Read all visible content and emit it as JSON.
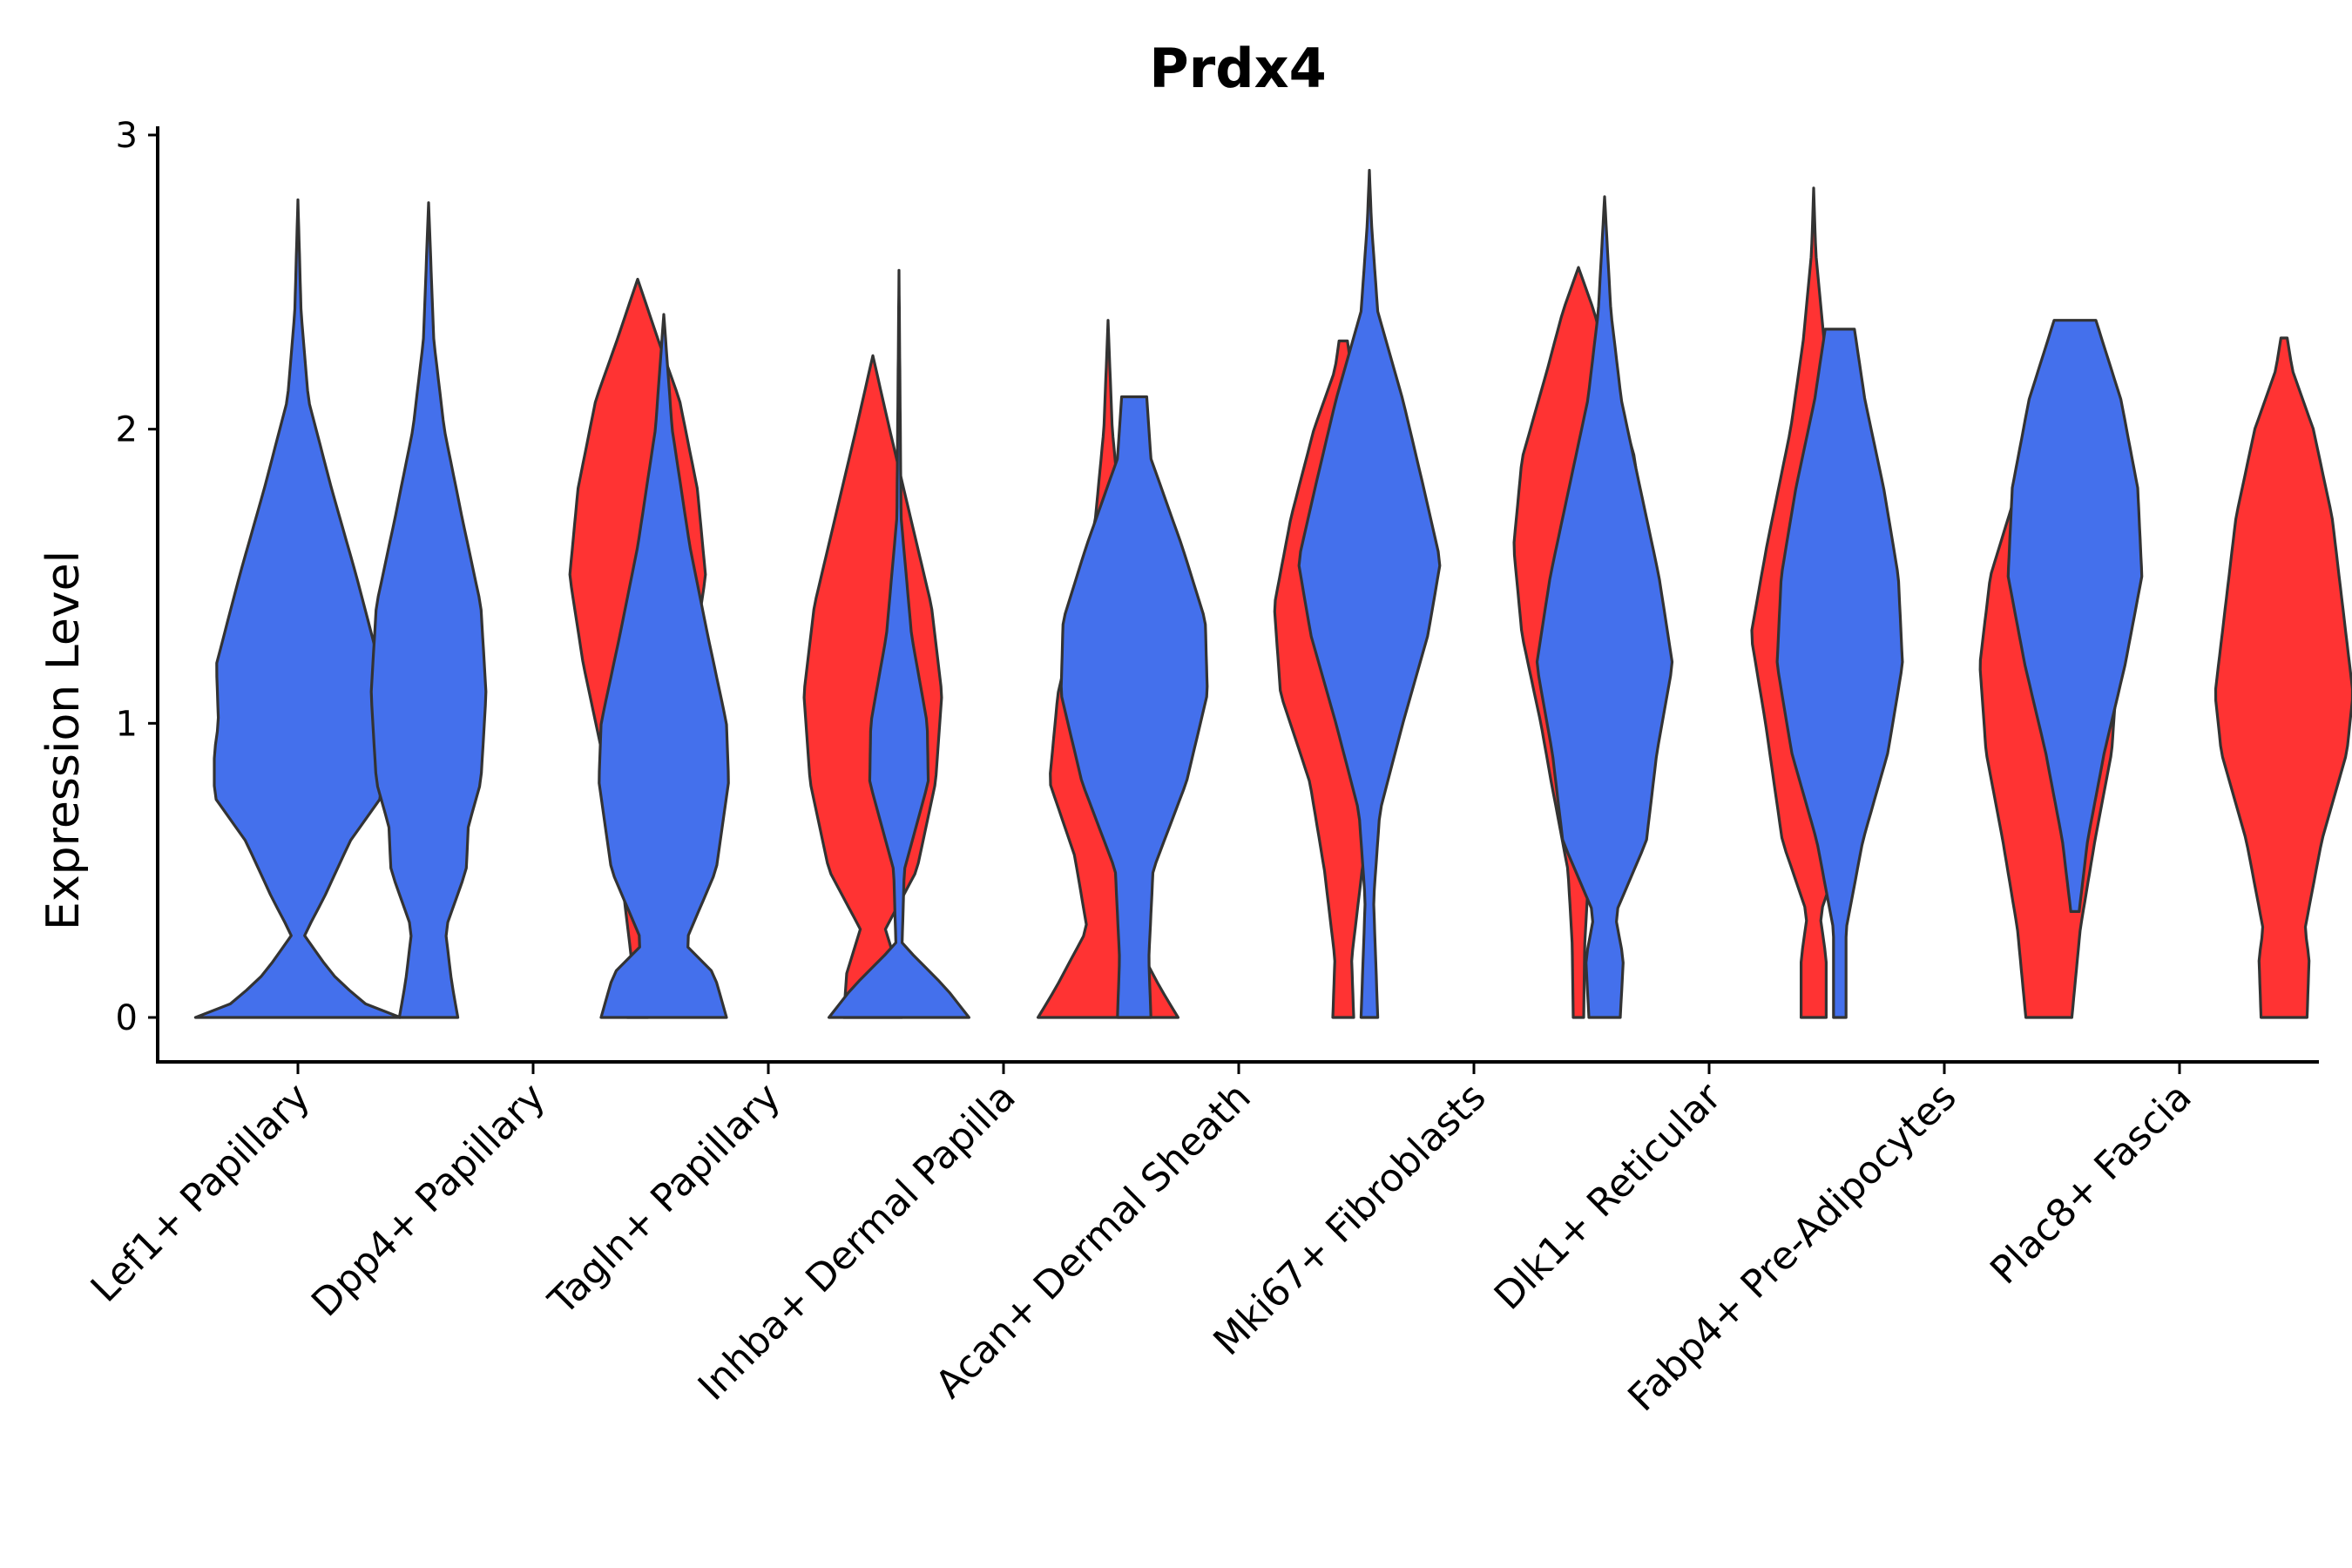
{
  "chart_data": {
    "type": "violin",
    "title": "Prdx4",
    "xlabel": "",
    "ylabel": "Expression Level",
    "ylim": [
      -0.15,
      3.05
    ],
    "yticks": [
      0,
      1,
      2,
      3
    ],
    "categories": [
      "Lef1+ Papillary",
      "Dpp4+ Papillary",
      "Tagln+ Papillary",
      "Inhba+ Dermal Papilla",
      "Acan+ Dermal Sheath",
      "Mki67+ Fibroblasts",
      "Dlk1+ Reticular",
      "Fabp4+ Pre-Adipocytes",
      "Plac8+ Fascia"
    ],
    "colors": {
      "group_a": "#4470EC",
      "group_b": "#FF3333"
    },
    "violins": [
      {
        "category": "Lef1+ Papillary",
        "group": "a",
        "offset": 0,
        "ymin": 0,
        "ymax": 2.78,
        "profile": [
          [
            0,
            0.98
          ],
          [
            0.05,
            0.62
          ],
          [
            0.15,
            0.32
          ],
          [
            0.28,
            0.06
          ],
          [
            0.4,
            0.24
          ],
          [
            0.6,
            0.5
          ],
          [
            0.75,
            0.8
          ],
          [
            0.9,
            0.8
          ],
          [
            1.0,
            0.76
          ],
          [
            1.2,
            0.78
          ],
          [
            1.5,
            0.56
          ],
          [
            1.8,
            0.32
          ],
          [
            2.1,
            0.1
          ],
          [
            2.4,
            0.03
          ],
          [
            2.78,
            0
          ]
        ]
      },
      {
        "category": "Dpp4+ Papillary",
        "group": "a",
        "offset": -0.5,
        "ymin": 0,
        "ymax": 2.77,
        "profile": [
          [
            0,
            0.28
          ],
          [
            0.12,
            0.22
          ],
          [
            0.3,
            0.16
          ],
          [
            0.5,
            0.36
          ],
          [
            0.65,
            0.38
          ],
          [
            0.8,
            0.5
          ],
          [
            1.1,
            0.55
          ],
          [
            1.4,
            0.5
          ],
          [
            1.7,
            0.32
          ],
          [
            2.0,
            0.15
          ],
          [
            2.3,
            0.05
          ],
          [
            2.77,
            0
          ]
        ]
      },
      {
        "category": "Dpp4+ Papillary",
        "group": "b",
        "offset": 0.5,
        "ymin": 0,
        "ymax": 2.51,
        "profile": [
          [
            0,
            0.1
          ],
          [
            0.2,
            0.06
          ],
          [
            0.5,
            0.16
          ],
          [
            0.9,
            0.34
          ],
          [
            1.2,
            0.52
          ],
          [
            1.5,
            0.65
          ],
          [
            1.8,
            0.57
          ],
          [
            2.1,
            0.4
          ],
          [
            2.3,
            0.2
          ],
          [
            2.51,
            0
          ]
        ]
      },
      {
        "category": "Tagln+ Papillary",
        "group": "a",
        "offset": -0.5,
        "ymin": 0,
        "ymax": 2.39,
        "profile": [
          [
            0,
            0.6
          ],
          [
            0.15,
            0.48
          ],
          [
            0.25,
            0.2
          ],
          [
            0.5,
            0.5
          ],
          [
            0.8,
            0.62
          ],
          [
            1.0,
            0.6
          ],
          [
            1.3,
            0.42
          ],
          [
            1.6,
            0.25
          ],
          [
            2.0,
            0.08
          ],
          [
            2.39,
            0
          ]
        ]
      },
      {
        "category": "Tagln+ Papillary",
        "group": "b",
        "offset": 0.5,
        "ymin": 0,
        "ymax": 2.25,
        "profile": [
          [
            0,
            0.28
          ],
          [
            0.15,
            0.25
          ],
          [
            0.3,
            0.12
          ],
          [
            0.5,
            0.42
          ],
          [
            0.8,
            0.6
          ],
          [
            1.1,
            0.66
          ],
          [
            1.4,
            0.56
          ],
          [
            1.7,
            0.36
          ],
          [
            2.0,
            0.16
          ],
          [
            2.25,
            0
          ]
        ]
      },
      {
        "category": "Inhba+ Dermal Papilla",
        "group": "a",
        "offset": -0.5,
        "ymin": 0,
        "ymax": 2.54,
        "profile": [
          [
            0,
            0.67
          ],
          [
            0.1,
            0.45
          ],
          [
            0.25,
            0.03
          ],
          [
            0.5,
            0.05
          ],
          [
            0.8,
            0.28
          ],
          [
            1.0,
            0.27
          ],
          [
            1.3,
            0.12
          ],
          [
            1.7,
            0.02
          ],
          [
            2.54,
            0
          ]
        ]
      },
      {
        "category": "Inhba+ Dermal Papilla",
        "group": "b",
        "offset": 0.5,
        "ymin": 0,
        "ymax": 2.37,
        "profile": [
          [
            0,
            0.67
          ],
          [
            0.1,
            0.5
          ],
          [
            0.3,
            0.2
          ],
          [
            0.55,
            0.32
          ],
          [
            0.8,
            0.56
          ],
          [
            1.1,
            0.48
          ],
          [
            1.4,
            0.28
          ],
          [
            1.7,
            0.12
          ],
          [
            2.0,
            0.04
          ],
          [
            2.37,
            0
          ]
        ]
      },
      {
        "category": "Acan+ Dermal Sheath",
        "group": "a",
        "offset": -0.5,
        "ymin": 0,
        "ymax": 2.11,
        "profile": [
          [
            0,
            0.16
          ],
          [
            0.2,
            0.14
          ],
          [
            0.5,
            0.18
          ],
          [
            0.8,
            0.5
          ],
          [
            1.1,
            0.7
          ],
          [
            1.35,
            0.68
          ],
          [
            1.6,
            0.46
          ],
          [
            1.9,
            0.16
          ],
          [
            2.11,
            0.12
          ]
        ]
      },
      {
        "category": "Acan+ Dermal Sheath",
        "group": "b",
        "offset": 0.5,
        "ymin": 0,
        "ymax": 2.3,
        "profile": [
          [
            0,
            0.1
          ],
          [
            0.2,
            0.08
          ],
          [
            0.5,
            0.18
          ],
          [
            0.8,
            0.32
          ],
          [
            1.1,
            0.6
          ],
          [
            1.4,
            0.66
          ],
          [
            1.7,
            0.5
          ],
          [
            2.0,
            0.28
          ],
          [
            2.2,
            0.08
          ],
          [
            2.3,
            0.04
          ]
        ]
      },
      {
        "category": "Mki67+ Fibroblasts",
        "group": "a",
        "offset": -0.5,
        "ymin": 0,
        "ymax": 2.88,
        "profile": [
          [
            0,
            0.08
          ],
          [
            0.2,
            0.06
          ],
          [
            0.4,
            0.04
          ],
          [
            0.7,
            0.1
          ],
          [
            1.0,
            0.32
          ],
          [
            1.3,
            0.56
          ],
          [
            1.55,
            0.68
          ],
          [
            1.8,
            0.52
          ],
          [
            2.1,
            0.32
          ],
          [
            2.4,
            0.08
          ],
          [
            2.7,
            0.02
          ],
          [
            2.88,
            0
          ]
        ]
      },
      {
        "category": "Mki67+ Fibroblasts",
        "group": "b",
        "offset": 0.5,
        "ymin": 0,
        "ymax": 2.55,
        "profile": [
          [
            0,
            0.05
          ],
          [
            0.25,
            0.06
          ],
          [
            0.5,
            0.1
          ],
          [
            0.8,
            0.26
          ],
          [
            1.0,
            0.36
          ],
          [
            1.3,
            0.54
          ],
          [
            1.6,
            0.62
          ],
          [
            1.9,
            0.54
          ],
          [
            2.2,
            0.3
          ],
          [
            2.4,
            0.15
          ],
          [
            2.55,
            0
          ]
        ]
      },
      {
        "category": "Dlk1+ Reticular",
        "group": "a",
        "offset": -0.5,
        "ymin": 0,
        "ymax": 2.79,
        "profile": [
          [
            0,
            0.15
          ],
          [
            0.2,
            0.18
          ],
          [
            0.35,
            0.1
          ],
          [
            0.6,
            0.4
          ],
          [
            0.9,
            0.5
          ],
          [
            1.2,
            0.65
          ],
          [
            1.5,
            0.52
          ],
          [
            1.8,
            0.34
          ],
          [
            2.1,
            0.16
          ],
          [
            2.4,
            0.06
          ],
          [
            2.79,
            0
          ]
        ]
      },
      {
        "category": "Dlk1+ Reticular",
        "group": "b",
        "offset": 0.5,
        "ymin": 0,
        "ymax": 2.82,
        "profile": [
          [
            0,
            0.12
          ],
          [
            0.2,
            0.12
          ],
          [
            0.35,
            0.06
          ],
          [
            0.6,
            0.3
          ],
          [
            1.0,
            0.46
          ],
          [
            1.3,
            0.6
          ],
          [
            1.6,
            0.45
          ],
          [
            2.0,
            0.22
          ],
          [
            2.3,
            0.1
          ],
          [
            2.6,
            0.02
          ],
          [
            2.82,
            0
          ]
        ]
      },
      {
        "category": "Fabp4+ Pre-Adipocytes",
        "group": "a",
        "offset": -0.5,
        "ymin": 0,
        "ymax": 2.34,
        "profile": [
          [
            0,
            0.06
          ],
          [
            0.3,
            0.06
          ],
          [
            0.6,
            0.22
          ],
          [
            0.9,
            0.46
          ],
          [
            1.2,
            0.6
          ],
          [
            1.5,
            0.56
          ],
          [
            1.8,
            0.42
          ],
          [
            2.1,
            0.24
          ],
          [
            2.34,
            0.14
          ]
        ]
      },
      {
        "category": "Fabp4+ Pre-Adipocytes",
        "group": "b",
        "offset": 0.5,
        "ymin": 0,
        "ymax": 1.97,
        "profile": [
          [
            0,
            0.22
          ],
          [
            0.3,
            0.3
          ],
          [
            0.6,
            0.44
          ],
          [
            0.9,
            0.6
          ],
          [
            1.2,
            0.66
          ],
          [
            1.5,
            0.56
          ],
          [
            1.8,
            0.3
          ],
          [
            1.97,
            0.18
          ]
        ]
      },
      {
        "category": "Plac8+ Fascia",
        "group": "a",
        "offset": -0.5,
        "ymin": 0.36,
        "ymax": 2.37,
        "profile": [
          [
            0.36,
            0.04
          ],
          [
            0.6,
            0.12
          ],
          [
            0.9,
            0.28
          ],
          [
            1.2,
            0.48
          ],
          [
            1.5,
            0.64
          ],
          [
            1.8,
            0.6
          ],
          [
            2.1,
            0.44
          ],
          [
            2.37,
            0.2
          ]
        ]
      },
      {
        "category": "Plac8+ Fascia",
        "group": "b",
        "offset": 0.5,
        "ymin": 0,
        "ymax": 2.31,
        "profile": [
          [
            0,
            0.22
          ],
          [
            0.2,
            0.24
          ],
          [
            0.3,
            0.2
          ],
          [
            0.6,
            0.36
          ],
          [
            0.9,
            0.6
          ],
          [
            1.1,
            0.66
          ],
          [
            1.4,
            0.56
          ],
          [
            1.7,
            0.46
          ],
          [
            2.0,
            0.28
          ],
          [
            2.2,
            0.08
          ],
          [
            2.31,
            0.03
          ]
        ]
      }
    ]
  }
}
